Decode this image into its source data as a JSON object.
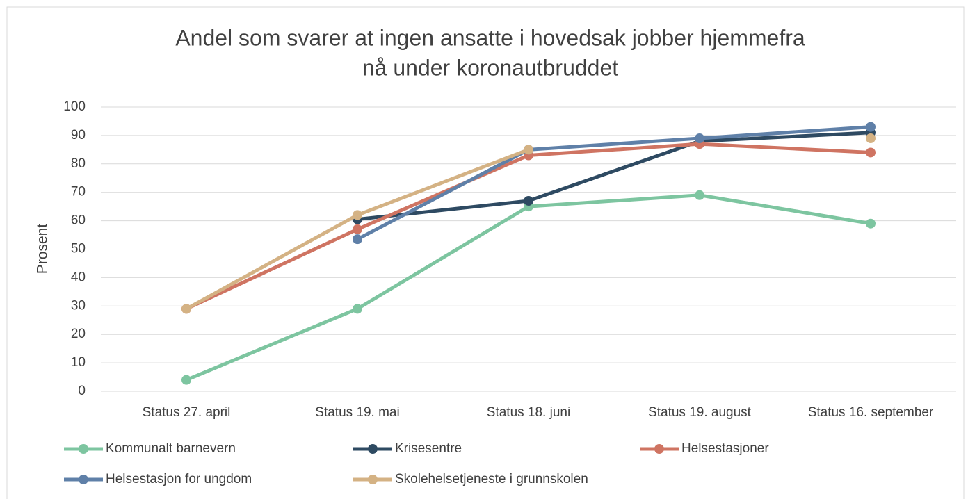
{
  "chart_data": {
    "type": "line",
    "title": [
      "Andel som svarer at ingen ansatte i hovedsak jobber hjemmefra",
      "nå under koronautbruddet"
    ],
    "y_label": "Prosent",
    "categories": [
      "Status 27. april",
      "Status 19. mai",
      "Status 18. juni",
      "Status 19. august",
      "Status 16. september"
    ],
    "series": [
      {
        "name": "Kommunalt barnevern",
        "color": "#7dc5a0",
        "values": [
          4,
          29,
          65,
          69,
          59
        ]
      },
      {
        "name": "Krisesentre",
        "color": "#2e4a62",
        "values": [
          null,
          60.5,
          67,
          88,
          91
        ]
      },
      {
        "name": "Helsestasjoner",
        "color": "#cf7462",
        "values": [
          29,
          57,
          83,
          87,
          84
        ]
      },
      {
        "name": "Helsestasjon for ungdom",
        "color": "#5f80a8",
        "values": [
          null,
          53.5,
          85,
          89,
          93
        ]
      },
      {
        "name": "Skolehelsetjeneste i grunnskolen",
        "color": "#d4b284",
        "values": [
          29,
          62,
          85,
          null,
          89
        ]
      }
    ],
    "ylim": [
      0,
      100
    ],
    "yticks": [
      0,
      10,
      20,
      30,
      40,
      50,
      60,
      70,
      80,
      90,
      100
    ],
    "grid": true
  }
}
